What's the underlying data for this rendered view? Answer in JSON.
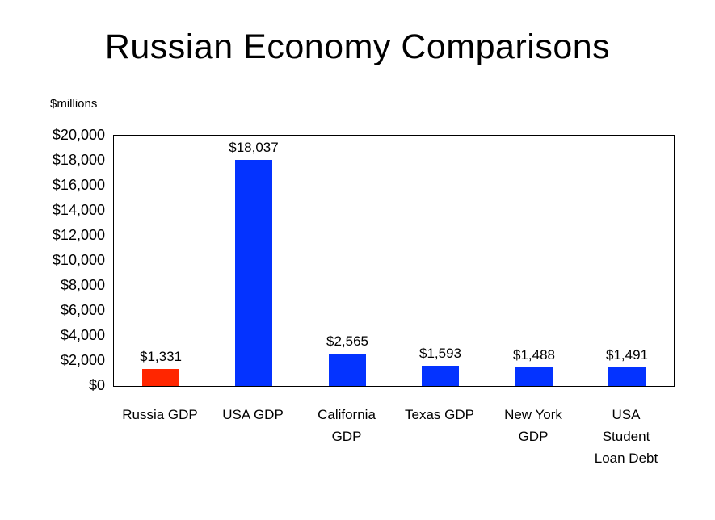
{
  "chart_data": {
    "type": "bar",
    "title": "Russian Economy Comparisons",
    "ylabel": "$millions",
    "xlabel": "",
    "categories": [
      "Russia GDP",
      "USA GDP",
      "California GDP",
      "Texas GDP",
      "New York GDP",
      "USA Student Loan Debt"
    ],
    "category_lines": [
      [
        "Russia GDP"
      ],
      [
        "USA GDP"
      ],
      [
        "California",
        "GDP"
      ],
      [
        "Texas GDP"
      ],
      [
        "New York",
        "GDP"
      ],
      [
        "USA",
        "Student",
        "Loan Debt"
      ]
    ],
    "values": [
      1331,
      18037,
      2565,
      1593,
      1488,
      1491
    ],
    "value_labels": [
      "$1,331",
      "$18,037",
      "$2,565",
      "$1,593",
      "$1,488",
      "$1,491"
    ],
    "bar_colors": [
      "#ff2600",
      "#0433ff",
      "#0433ff",
      "#0433ff",
      "#0433ff",
      "#0433ff"
    ],
    "ylim": [
      0,
      20000
    ],
    "ytick_step": 2000,
    "ytick_labels": [
      "$0",
      "$2,000",
      "$4,000",
      "$6,000",
      "$8,000",
      "$10,000",
      "$12,000",
      "$14,000",
      "$16,000",
      "$18,000",
      "$20,000"
    ],
    "grid": false,
    "legend": false,
    "axis_color": "#000000"
  }
}
